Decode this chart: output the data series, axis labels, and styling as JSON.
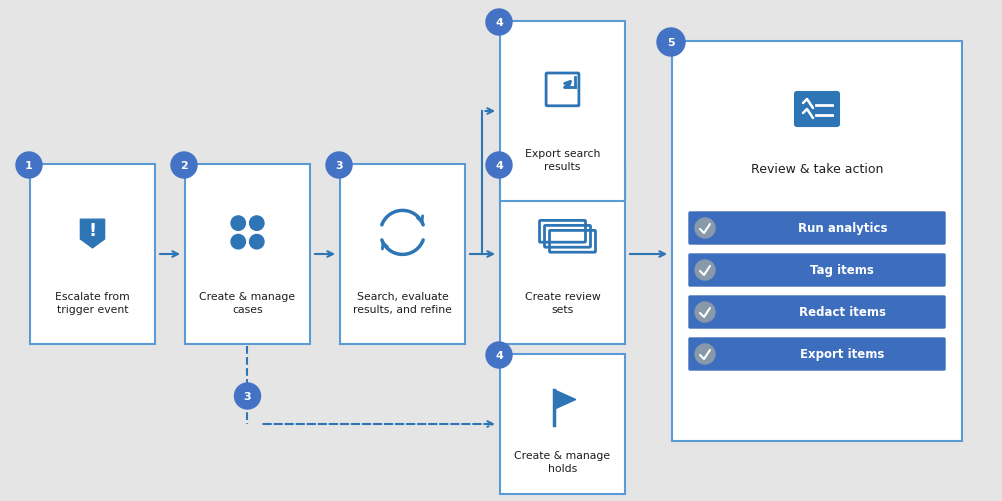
{
  "bg_color": "#e5e5e5",
  "box_bg": "#ffffff",
  "box_border": "#5b9bd5",
  "circle_color": "#4472c4",
  "icon_color": "#2e75b6",
  "arrow_color": "#2e75b6",
  "title_color": "#1f1f1f",
  "btn_color": "#3d6dbd",
  "btn_text_color": "#ffffff",
  "figsize": [
    10.02,
    5.02
  ],
  "dpi": 100,
  "review_buttons": [
    "Run analytics",
    "Tag items",
    "Redact items",
    "Export items"
  ]
}
